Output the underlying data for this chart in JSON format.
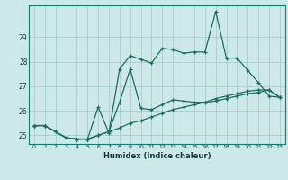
{
  "xlabel": "Humidex (Indice chaleur)",
  "ylabel": "",
  "xlim": [
    -0.5,
    23.5
  ],
  "ylim": [
    24.65,
    30.3
  ],
  "yticks": [
    25,
    26,
    27,
    28,
    29
  ],
  "xticks": [
    0,
    1,
    2,
    3,
    4,
    5,
    6,
    7,
    8,
    9,
    10,
    11,
    12,
    13,
    14,
    15,
    16,
    17,
    18,
    19,
    20,
    21,
    22,
    23
  ],
  "background_color": "#cce8e8",
  "grid_color": "#aacccc",
  "line_color": "#1a6e64",
  "line1": {
    "x": [
      0,
      1,
      2,
      3,
      4,
      5,
      6,
      7,
      8,
      9,
      10,
      11,
      12,
      13,
      14,
      15,
      16,
      17,
      18,
      19,
      20,
      21,
      22,
      23
    ],
    "y": [
      25.4,
      25.4,
      25.15,
      24.9,
      24.85,
      24.85,
      25.0,
      25.15,
      25.3,
      25.5,
      25.6,
      25.75,
      25.9,
      26.05,
      26.15,
      26.25,
      26.35,
      26.5,
      26.6,
      26.7,
      26.8,
      26.85,
      26.85,
      26.55
    ]
  },
  "line2": {
    "x": [
      0,
      1,
      2,
      3,
      4,
      5,
      6,
      7,
      8,
      9,
      10,
      11,
      12,
      13,
      14,
      15,
      16,
      17,
      18,
      19,
      20,
      21,
      22,
      23
    ],
    "y": [
      25.4,
      25.4,
      25.15,
      24.9,
      24.85,
      24.85,
      26.15,
      25.1,
      27.7,
      28.25,
      28.1,
      27.95,
      28.55,
      28.5,
      28.35,
      28.4,
      28.4,
      30.05,
      28.15,
      28.15,
      27.65,
      27.15,
      26.6,
      26.55
    ]
  },
  "line3": {
    "x": [
      0,
      1,
      2,
      3,
      4,
      5,
      6,
      7,
      8,
      9,
      10,
      11,
      12,
      13,
      14,
      15,
      16,
      17,
      18,
      19,
      20,
      21,
      22,
      23
    ],
    "y": [
      25.4,
      25.4,
      25.15,
      24.9,
      24.85,
      24.85,
      25.0,
      25.15,
      26.35,
      27.7,
      26.1,
      26.05,
      26.25,
      26.45,
      26.4,
      26.35,
      26.35,
      26.4,
      26.5,
      26.6,
      26.7,
      26.75,
      26.85,
      26.55
    ]
  }
}
